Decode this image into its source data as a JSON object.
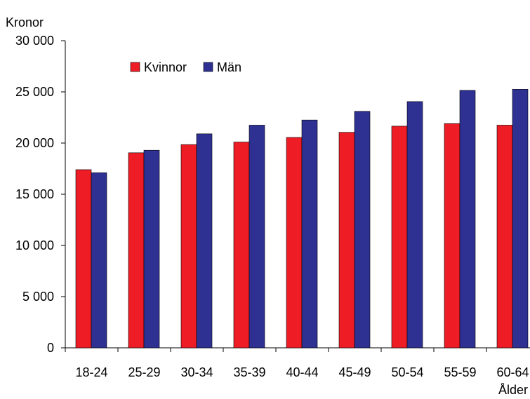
{
  "chart_data": {
    "type": "bar",
    "title": "",
    "ylabel": "Kronor",
    "xlabel": "Ålder",
    "ylim": [
      0,
      30000
    ],
    "ytick_values": [
      0,
      5000,
      10000,
      15000,
      20000,
      25000,
      30000
    ],
    "ytick_labels": [
      "0",
      "5 000",
      "10 000",
      "15 000",
      "20 000",
      "25 000",
      "30 000"
    ],
    "categories": [
      "18-24",
      "25-29",
      "30-34",
      "35-39",
      "40-44",
      "45-49",
      "50-54",
      "55-59",
      "60-64"
    ],
    "series": [
      {
        "name": "Kvinnor",
        "color": "#ee1c25",
        "values": [
          17400,
          19050,
          19850,
          20100,
          20550,
          21050,
          21650,
          21900,
          21750
        ]
      },
      {
        "name": "Män",
        "color": "#2e3092",
        "values": [
          17100,
          19300,
          20900,
          21750,
          22250,
          23100,
          24050,
          25150,
          25250
        ]
      }
    ],
    "legend_position": "top-left",
    "grid": false
  }
}
